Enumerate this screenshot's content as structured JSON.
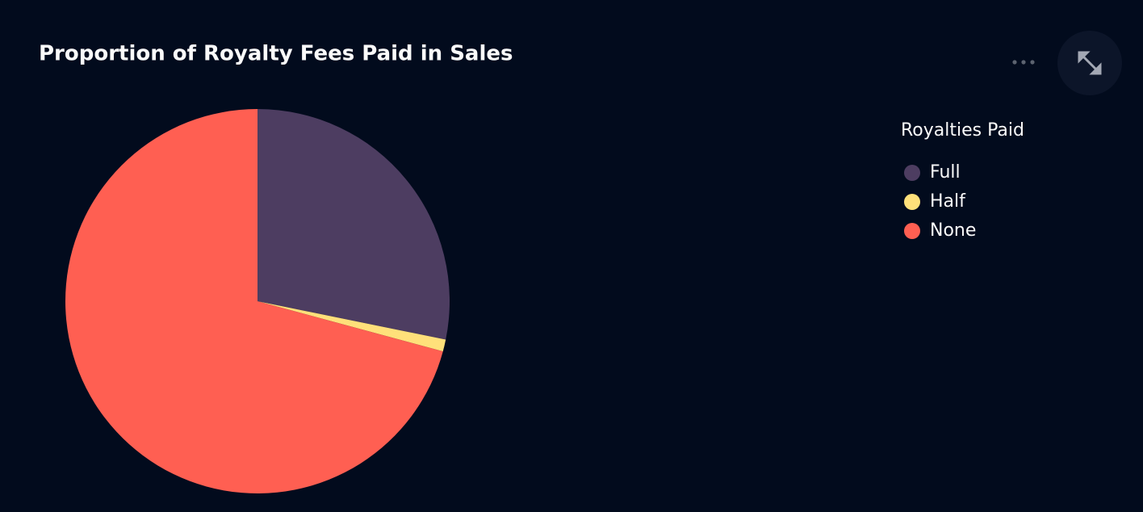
{
  "chart_data": {
    "type": "pie",
    "title": "Proportion of Royalty Fees Paid in Sales",
    "legend_title": "Royalties Paid",
    "categories": [
      "Full",
      "Half",
      "None"
    ],
    "values": [
      28.2,
      1.0,
      70.8
    ],
    "colors": [
      "#4d3d61",
      "#ffe07a",
      "#ff5f52"
    ]
  }
}
